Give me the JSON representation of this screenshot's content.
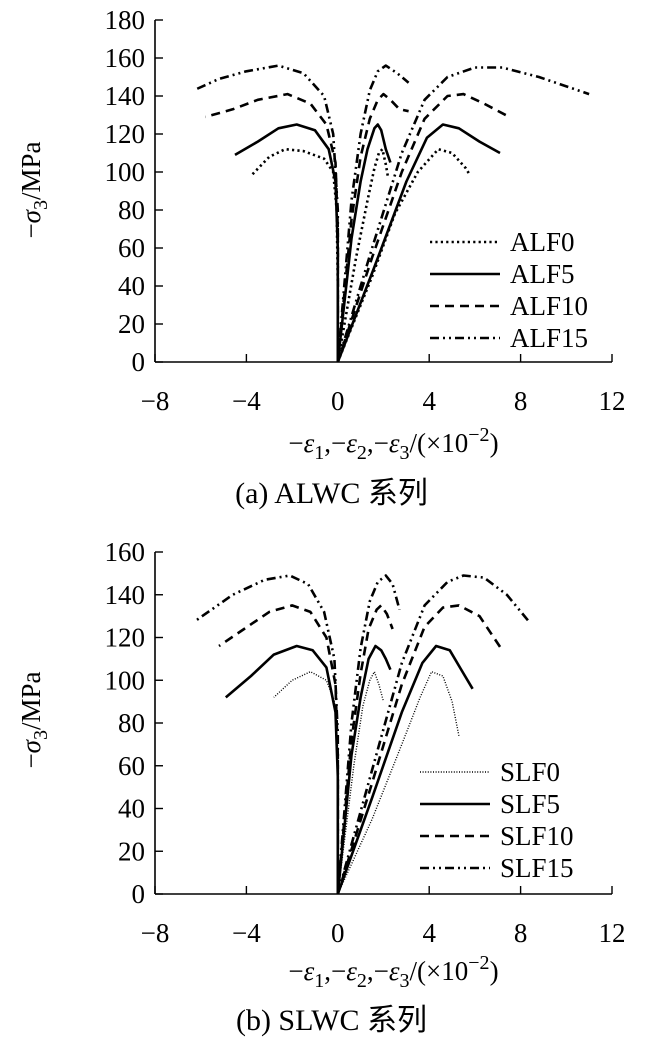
{
  "chart_data": [
    {
      "type": "line",
      "caption": "(a) ALWC 系列",
      "ylabel": "−σ3/MPa",
      "xlabel": "−ε1,−ε2,−ε3/(×10−2)",
      "xlim": [
        -8,
        12
      ],
      "ylim": [
        0,
        180
      ],
      "xticks": [
        -8,
        -4,
        0,
        4,
        8,
        12
      ],
      "yticks": [
        0,
        20,
        40,
        60,
        80,
        100,
        120,
        140,
        160,
        180
      ],
      "legend_position": "bottom-right",
      "series": [
        {
          "name": "ALF0",
          "style": "dotted",
          "lateral": [
            [
              0,
              0
            ],
            [
              0,
              40
            ],
            [
              -0.05,
              80
            ],
            [
              -0.2,
              100
            ],
            [
              -0.6,
              107
            ],
            [
              -1.5,
              111
            ],
            [
              -2.3,
              112
            ],
            [
              -3,
              108
            ],
            [
              -3.8,
              98
            ]
          ],
          "axial": [
            [
              0,
              0
            ],
            [
              1.5,
              45
            ],
            [
              2.5,
              78
            ],
            [
              3.5,
              100
            ],
            [
              4.4,
              112
            ],
            [
              5,
              110
            ],
            [
              5.6,
              102
            ],
            [
              5.8,
              98
            ]
          ],
          "volumetric": [
            [
              0,
              0
            ],
            [
              0.8,
              55
            ],
            [
              1.3,
              85
            ],
            [
              1.6,
              102
            ],
            [
              1.8,
              110
            ],
            [
              1.95,
              112
            ],
            [
              2.1,
              104
            ],
            [
              2.2,
              97
            ]
          ]
        },
        {
          "name": "ALF5",
          "style": "solid",
          "lateral": [
            [
              0,
              0
            ],
            [
              0,
              60
            ],
            [
              -0.1,
              95
            ],
            [
              -0.4,
              112
            ],
            [
              -1,
              122
            ],
            [
              -1.8,
              125
            ],
            [
              -2.6,
              123
            ],
            [
              -3.5,
              116
            ],
            [
              -4.5,
              109
            ]
          ],
          "axial": [
            [
              0,
              0
            ],
            [
              1.6,
              50
            ],
            [
              3,
              95
            ],
            [
              3.9,
              118
            ],
            [
              4.6,
              125
            ],
            [
              5.3,
              123
            ],
            [
              6.2,
              116
            ],
            [
              7.1,
              110
            ]
          ],
          "volumetric": [
            [
              0,
              0
            ],
            [
              0.6,
              65
            ],
            [
              1,
              95
            ],
            [
              1.3,
              112
            ],
            [
              1.6,
              123
            ],
            [
              1.75,
              125
            ],
            [
              1.9,
              122
            ],
            [
              2.1,
              112
            ],
            [
              2.3,
              105
            ]
          ]
        },
        {
          "name": "ALF10",
          "style": "dashed",
          "lateral": [
            [
              0,
              0
            ],
            [
              0,
              70
            ],
            [
              -0.1,
              105
            ],
            [
              -0.5,
              125
            ],
            [
              -1.2,
              136
            ],
            [
              -2.2,
              141
            ],
            [
              -3.5,
              138
            ],
            [
              -4.6,
              133
            ],
            [
              -5.8,
              129
            ]
          ],
          "axial": [
            [
              0,
              0
            ],
            [
              1.5,
              55
            ],
            [
              2.8,
              100
            ],
            [
              3.8,
              128
            ],
            [
              4.8,
              140
            ],
            [
              5.5,
              141
            ],
            [
              6.4,
              136
            ],
            [
              7.5,
              129
            ]
          ],
          "volumetric": [
            [
              0,
              0
            ],
            [
              0.6,
              75
            ],
            [
              1,
              108
            ],
            [
              1.4,
              128
            ],
            [
              1.75,
              138
            ],
            [
              2,
              141
            ],
            [
              2.3,
              138
            ],
            [
              2.7,
              133
            ],
            [
              3.1,
              132
            ]
          ]
        },
        {
          "name": "ALF15",
          "style": "dash-dot-dot",
          "lateral": [
            [
              0,
              0
            ],
            [
              0,
              80
            ],
            [
              -0.2,
              120
            ],
            [
              -0.6,
              140
            ],
            [
              -1.5,
              152
            ],
            [
              -2.6,
              156
            ],
            [
              -4,
              153
            ],
            [
              -5.2,
              149
            ],
            [
              -6.3,
              143
            ]
          ],
          "axial": [
            [
              0,
              0
            ],
            [
              1.5,
              60
            ],
            [
              2.8,
              110
            ],
            [
              3.8,
              138
            ],
            [
              4.8,
              150
            ],
            [
              6,
              155
            ],
            [
              7.2,
              155
            ],
            [
              8.8,
              150
            ],
            [
              11,
              141
            ]
          ],
          "volumetric": [
            [
              0,
              0
            ],
            [
              0.6,
              85
            ],
            [
              1,
              120
            ],
            [
              1.4,
              143
            ],
            [
              1.75,
              153
            ],
            [
              2.1,
              156
            ],
            [
              2.6,
              152
            ],
            [
              3.1,
              147
            ]
          ]
        }
      ]
    },
    {
      "type": "line",
      "caption": "(b) SLWC 系列",
      "ylabel": "−σ3/MPa",
      "xlabel": "−ε1,−ε2,−ε3/(×10−2)",
      "xlim": [
        -8,
        12
      ],
      "ylim": [
        0,
        160
      ],
      "xticks": [
        -8,
        -4,
        0,
        4,
        8,
        12
      ],
      "yticks": [
        0,
        20,
        40,
        60,
        80,
        100,
        120,
        140,
        160
      ],
      "legend_position": "bottom-right",
      "series": [
        {
          "name": "SLF0",
          "style": "fine-dotted",
          "lateral": [
            [
              0,
              0
            ],
            [
              0,
              40
            ],
            [
              0,
              68
            ],
            [
              -0.15,
              90
            ],
            [
              -0.5,
              100
            ],
            [
              -1.2,
              104
            ],
            [
              -2,
              100
            ],
            [
              -2.8,
              92
            ]
          ],
          "axial": [
            [
              0,
              0
            ],
            [
              1.5,
              35
            ],
            [
              2.8,
              70
            ],
            [
              3.6,
              92
            ],
            [
              4.1,
              104
            ],
            [
              4.6,
              102
            ],
            [
              5,
              90
            ],
            [
              5.3,
              74
            ]
          ],
          "volumetric": [
            [
              0,
              0
            ],
            [
              0.7,
              60
            ],
            [
              1.1,
              88
            ],
            [
              1.4,
              100
            ],
            [
              1.6,
              104
            ],
            [
              1.8,
              98
            ],
            [
              2,
              90
            ]
          ]
        },
        {
          "name": "SLF5",
          "style": "solid",
          "lateral": [
            [
              0,
              0
            ],
            [
              0,
              55
            ],
            [
              -0.1,
              85
            ],
            [
              -0.5,
              106
            ],
            [
              -1.1,
              114
            ],
            [
              -1.8,
              116
            ],
            [
              -2.8,
              112
            ],
            [
              -3.8,
              102
            ],
            [
              -4.9,
              92
            ]
          ],
          "axial": [
            [
              0,
              0
            ],
            [
              1.5,
              45
            ],
            [
              2.8,
              85
            ],
            [
              3.7,
              108
            ],
            [
              4.3,
              116
            ],
            [
              4.9,
              114
            ],
            [
              5.4,
              105
            ],
            [
              5.9,
              96
            ]
          ],
          "volumetric": [
            [
              0,
              0
            ],
            [
              0.6,
              65
            ],
            [
              1,
              92
            ],
            [
              1.35,
              110
            ],
            [
              1.65,
              116
            ],
            [
              1.9,
              114
            ],
            [
              2.1,
              110
            ],
            [
              2.3,
              105
            ]
          ]
        },
        {
          "name": "SLF10",
          "style": "dashed",
          "lateral": [
            [
              0,
              0
            ],
            [
              0,
              65
            ],
            [
              -0.1,
              98
            ],
            [
              -0.5,
              120
            ],
            [
              -1.2,
              132
            ],
            [
              -2,
              135
            ],
            [
              -3,
              132
            ],
            [
              -4.1,
              124
            ],
            [
              -5.2,
              116
            ]
          ],
          "axial": [
            [
              0,
              0
            ],
            [
              1.5,
              52
            ],
            [
              2.8,
              98
            ],
            [
              3.8,
              125
            ],
            [
              4.6,
              134
            ],
            [
              5.3,
              135
            ],
            [
              6.2,
              130
            ],
            [
              7.2,
              114
            ]
          ],
          "volumetric": [
            [
              0,
              0
            ],
            [
              0.6,
              72
            ],
            [
              1,
              103
            ],
            [
              1.35,
              124
            ],
            [
              1.7,
              133
            ],
            [
              1.9,
              135
            ],
            [
              2.15,
              131
            ],
            [
              2.4,
              124
            ]
          ]
        },
        {
          "name": "SLF15",
          "style": "dash-dot-dot",
          "lateral": [
            [
              0,
              0
            ],
            [
              0,
              75
            ],
            [
              -0.15,
              110
            ],
            [
              -0.6,
              132
            ],
            [
              -1.3,
              145
            ],
            [
              -2.1,
              149
            ],
            [
              -3.2,
              147
            ],
            [
              -4.6,
              140
            ],
            [
              -6.2,
              128
            ]
          ],
          "axial": [
            [
              0,
              0
            ],
            [
              1.5,
              58
            ],
            [
              2.8,
              108
            ],
            [
              3.8,
              135
            ],
            [
              4.8,
              146
            ],
            [
              5.5,
              149
            ],
            [
              6.4,
              148
            ],
            [
              7.4,
              140
            ],
            [
              8.4,
              127
            ]
          ],
          "volumetric": [
            [
              0,
              0
            ],
            [
              0.6,
              80
            ],
            [
              1,
              115
            ],
            [
              1.4,
              137
            ],
            [
              1.75,
              146
            ],
            [
              2.1,
              149
            ],
            [
              2.4,
              145
            ],
            [
              2.7,
              133
            ]
          ]
        }
      ]
    }
  ]
}
